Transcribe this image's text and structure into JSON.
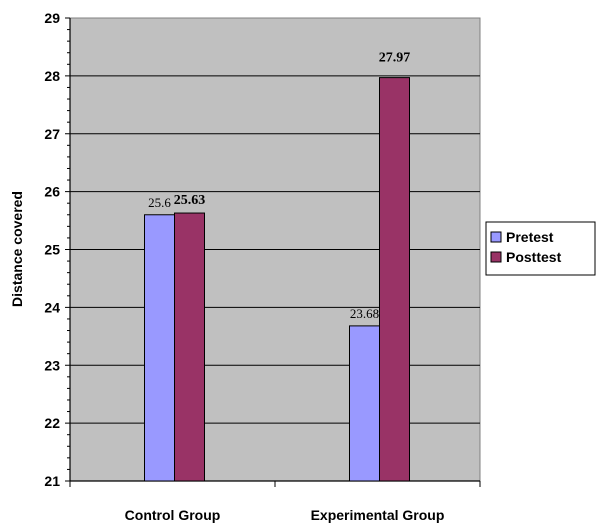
{
  "chart_data": {
    "type": "bar",
    "categories": [
      "Control Group",
      "Experimental Group"
    ],
    "series": [
      {
        "name": "Pretest",
        "values": [
          25.6,
          23.68
        ],
        "labels": [
          "25.6",
          "23.68"
        ],
        "color": "#9999ff",
        "label_style": "normal"
      },
      {
        "name": "Posttest",
        "values": [
          25.63,
          27.97
        ],
        "labels": [
          "25.63",
          "27.97"
        ],
        "color": "#993366",
        "label_style": "bold"
      }
    ],
    "ylabel": "Distance covered",
    "xlabel": "",
    "ylim": [
      21,
      29
    ],
    "yticks": [
      "21",
      "22",
      "23",
      "24",
      "25",
      "26",
      "27",
      "28",
      "29"
    ],
    "plot_background": "#c0c0c0",
    "grid": true,
    "legend": "right"
  }
}
